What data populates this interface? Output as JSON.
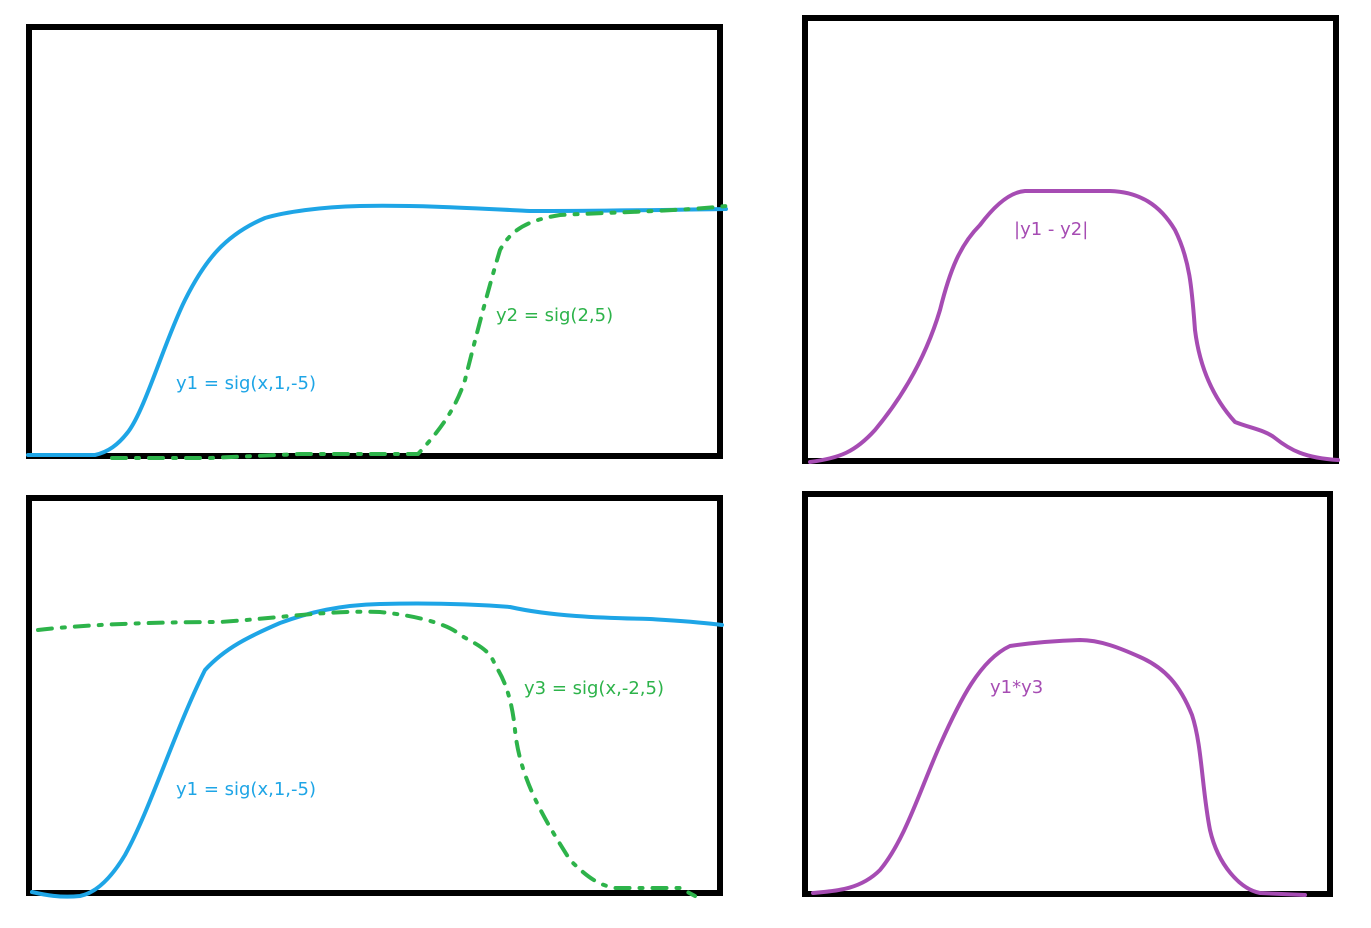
{
  "colors": {
    "blue": "#1ea5e6",
    "green": "#2db34a",
    "purple": "#a64cb3",
    "frame": "#000000",
    "background": "#ffffff"
  },
  "panels": {
    "top_left": {
      "blue_label": "y1 = sig(x,1,-5)",
      "green_label": "y2 = sig(2,5)"
    },
    "top_right": {
      "purple_label": "|y1 - y2|"
    },
    "bottom_left": {
      "blue_label": "y1 = sig(x,1,-5)",
      "green_label": "y3 = sig(x,-2,5)"
    },
    "bottom_right": {
      "purple_label": "y1*y3"
    }
  }
}
